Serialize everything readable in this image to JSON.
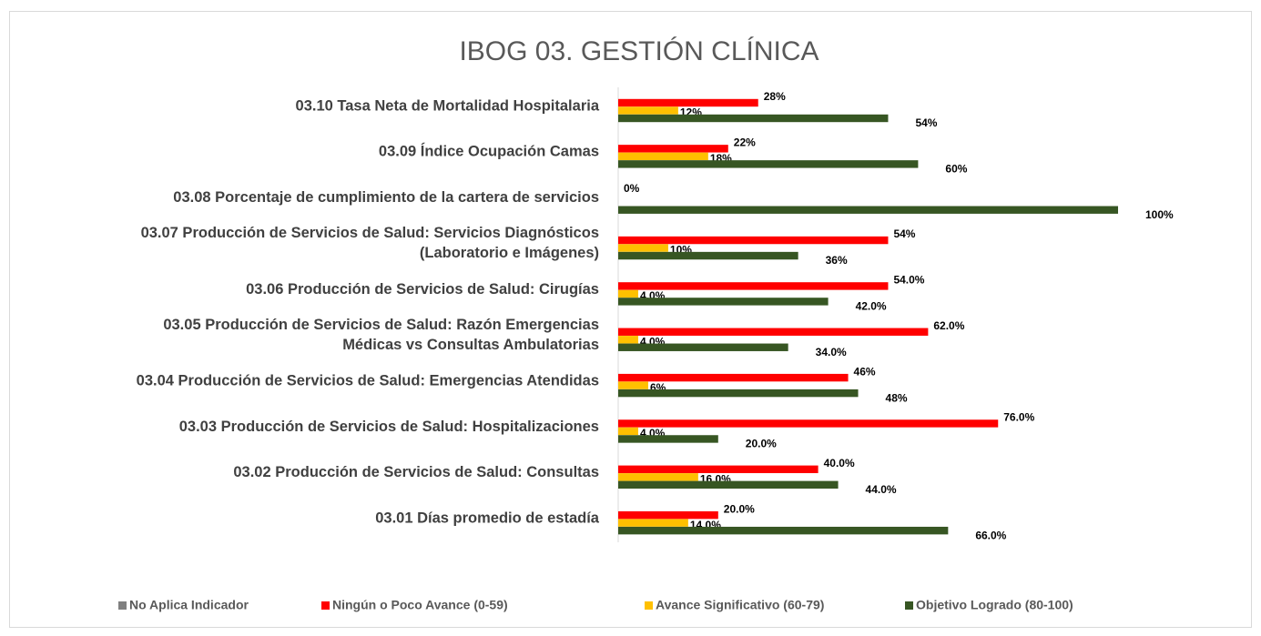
{
  "chart_data": {
    "type": "bar",
    "orientation": "horizontal",
    "title": "IBOG 03. GESTIÓN CLÍNICA",
    "categories": [
      "03.10 Tasa Neta de Mortalidad Hospitalaria",
      "03.09 Índice Ocupación Camas",
      "03.08 Porcentaje de cumplimiento de la cartera de servicios",
      "03.07 Producción de Servicios de Salud: Servicios Diagnósticos\n(Laboratorio e Imágenes)",
      "03.06 Producción de Servicios de Salud: Cirugías",
      "03.05 Producción de Servicios de Salud: Razón Emergencias\nMédicas vs Consultas Ambulatorias",
      "03.04 Producción de Servicios de Salud: Emergencias Atendidas",
      "03.03 Producción de Servicios de Salud: Hospitalizaciones",
      "03.02 Producción de Servicios de Salud: Consultas",
      "03.01 Días promedio de estadía"
    ],
    "xlim": [
      0,
      100
    ],
    "legend": "bottom",
    "series": [
      {
        "name": "No Aplica Indicador",
        "color": "#808080",
        "values": [
          null,
          null,
          null,
          null,
          null,
          null,
          null,
          null,
          null,
          null
        ]
      },
      {
        "name": "Ningún o Poco Avance (0-59)",
        "color": "#ff0000",
        "values": [
          28,
          22,
          0,
          54,
          54,
          62,
          46,
          76,
          40,
          20
        ],
        "value_labels": [
          "28%",
          "22%",
          "0%",
          "54%",
          "54.0%",
          "62.0%",
          "46%",
          "76.0%",
          "40.0%",
          "20.0%"
        ]
      },
      {
        "name": "Avance Significativo (60-79)",
        "color": "#ffc000",
        "values": [
          12,
          18,
          null,
          10,
          4,
          4,
          6,
          4,
          16,
          14
        ],
        "value_labels": [
          "12%",
          "18%",
          null,
          "10%",
          "4.0%",
          "4.0%",
          "6%",
          "4.0%",
          "16.0%",
          "14.0%"
        ]
      },
      {
        "name": "Objetivo Logrado (80-100)",
        "color": "#375623",
        "values": [
          54,
          60,
          100,
          36,
          42,
          34,
          48,
          20,
          44,
          66
        ],
        "value_labels": [
          "54%",
          "60%",
          "100%",
          "36%",
          "42.0%",
          "34.0%",
          "48%",
          "20.0%",
          "44.0%",
          "66.0%"
        ]
      }
    ]
  }
}
